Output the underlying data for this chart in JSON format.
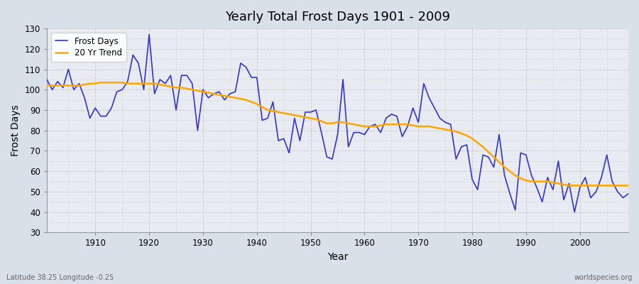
{
  "title": "Yearly Total Frost Days 1901 - 2009",
  "xlabel": "Year",
  "ylabel": "Frost Days",
  "bottom_left_label": "Latitude 38.25 Longitude -0.25",
  "bottom_right_label": "worldspecies.org",
  "ylim": [
    30,
    130
  ],
  "yticks": [
    30,
    40,
    50,
    60,
    70,
    80,
    90,
    100,
    110,
    120,
    130
  ],
  "line_color": "#3333cc",
  "trend_color": "#FFA500",
  "background_color": "#d8e0ea",
  "plot_bg_color": "#e8ecf2",
  "legend_entries": [
    "Frost Days",
    "20 Yr Trend"
  ],
  "frost_days": [
    105,
    100,
    104,
    101,
    110,
    100,
    103,
    96,
    86,
    91,
    87,
    87,
    91,
    99,
    100,
    104,
    117,
    113,
    100,
    127,
    98,
    105,
    103,
    107,
    90,
    107,
    107,
    103,
    80,
    100,
    96,
    98,
    99,
    95,
    98,
    99,
    113,
    111,
    106,
    106,
    85,
    86,
    94,
    75,
    76,
    69,
    86,
    75,
    89,
    89,
    90,
    79,
    67,
    66,
    78,
    105,
    72,
    79,
    79,
    78,
    82,
    83,
    79,
    86,
    88,
    87,
    77,
    82,
    91,
    84,
    103,
    96,
    91,
    86,
    84,
    83,
    66,
    72,
    73,
    56,
    51,
    68,
    67,
    62,
    78,
    58,
    49,
    41,
    69,
    68,
    58,
    52,
    45,
    57,
    51,
    65,
    46,
    54,
    40,
    52,
    57,
    47,
    50,
    57,
    68,
    55,
    50,
    47,
    49
  ],
  "trend_20yr": [
    102.0,
    102.0,
    102.0,
    102.0,
    102.0,
    102.0,
    102.0,
    102.5,
    103.0,
    103.0,
    103.5,
    103.5,
    103.5,
    103.5,
    103.5,
    103.0,
    103.0,
    103.0,
    103.0,
    103.0,
    103.0,
    102.5,
    102.0,
    101.5,
    101.0,
    101.0,
    100.5,
    100.0,
    99.5,
    99.0,
    98.5,
    98.0,
    97.5,
    97.0,
    96.5,
    96.0,
    95.5,
    95.0,
    94.0,
    93.0,
    91.5,
    90.0,
    89.5,
    89.0,
    88.5,
    88.0,
    87.5,
    87.0,
    86.5,
    86.0,
    85.5,
    84.5,
    83.5,
    83.5,
    84.0,
    84.0,
    83.5,
    83.0,
    82.5,
    82.0,
    82.0,
    82.0,
    82.5,
    83.0,
    83.0,
    83.0,
    83.0,
    83.0,
    82.5,
    82.0,
    82.0,
    82.0,
    81.5,
    81.0,
    80.5,
    80.0,
    79.5,
    78.5,
    77.5,
    76.0,
    74.0,
    72.0,
    69.5,
    67.0,
    64.5,
    62.0,
    60.0,
    58.0,
    56.5,
    55.5,
    55.0,
    55.0,
    55.0,
    55.0,
    54.5,
    54.0,
    53.5,
    53.0,
    53.0,
    53.0,
    53.0,
    53.0,
    53.0,
    53.0,
    53.0,
    53.0,
    53.0,
    53.0,
    53.0
  ],
  "start_year": 1901
}
